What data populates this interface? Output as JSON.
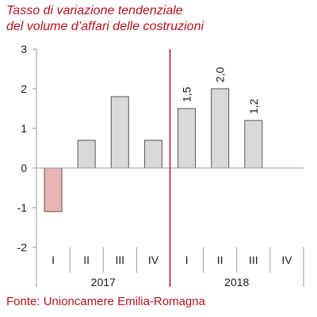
{
  "title_line1": "Tasso di variazione tendenziale",
  "title_line2": "del volume d’affari delle costruzioni",
  "source": "Fonte: Unioncamere Emilia-Romagna",
  "colors": {
    "title": "#b3121d",
    "positive_bar": "#d9d9d9",
    "negative_bar": "#e8b4b4",
    "divider": "#b3121d"
  },
  "chart_data": {
    "type": "bar",
    "categories": [
      "I",
      "II",
      "III",
      "IV",
      "I",
      "II",
      "III",
      "IV"
    ],
    "groups": [
      {
        "label": "2017",
        "categories": [
          "I",
          "II",
          "III",
          "IV"
        ]
      },
      {
        "label": "2018",
        "categories": [
          "I",
          "II",
          "III",
          "IV"
        ]
      }
    ],
    "values": [
      -1.1,
      0.7,
      1.8,
      0.7,
      1.5,
      2.0,
      1.2,
      null
    ],
    "data_labels": [
      "",
      "",
      "",
      "",
      "1,5",
      "2,0",
      "1,2",
      ""
    ],
    "yticks": [
      "-2",
      "-1",
      "0",
      "1",
      "2",
      "3"
    ],
    "ylim": [
      -2,
      3
    ],
    "grid": false
  }
}
